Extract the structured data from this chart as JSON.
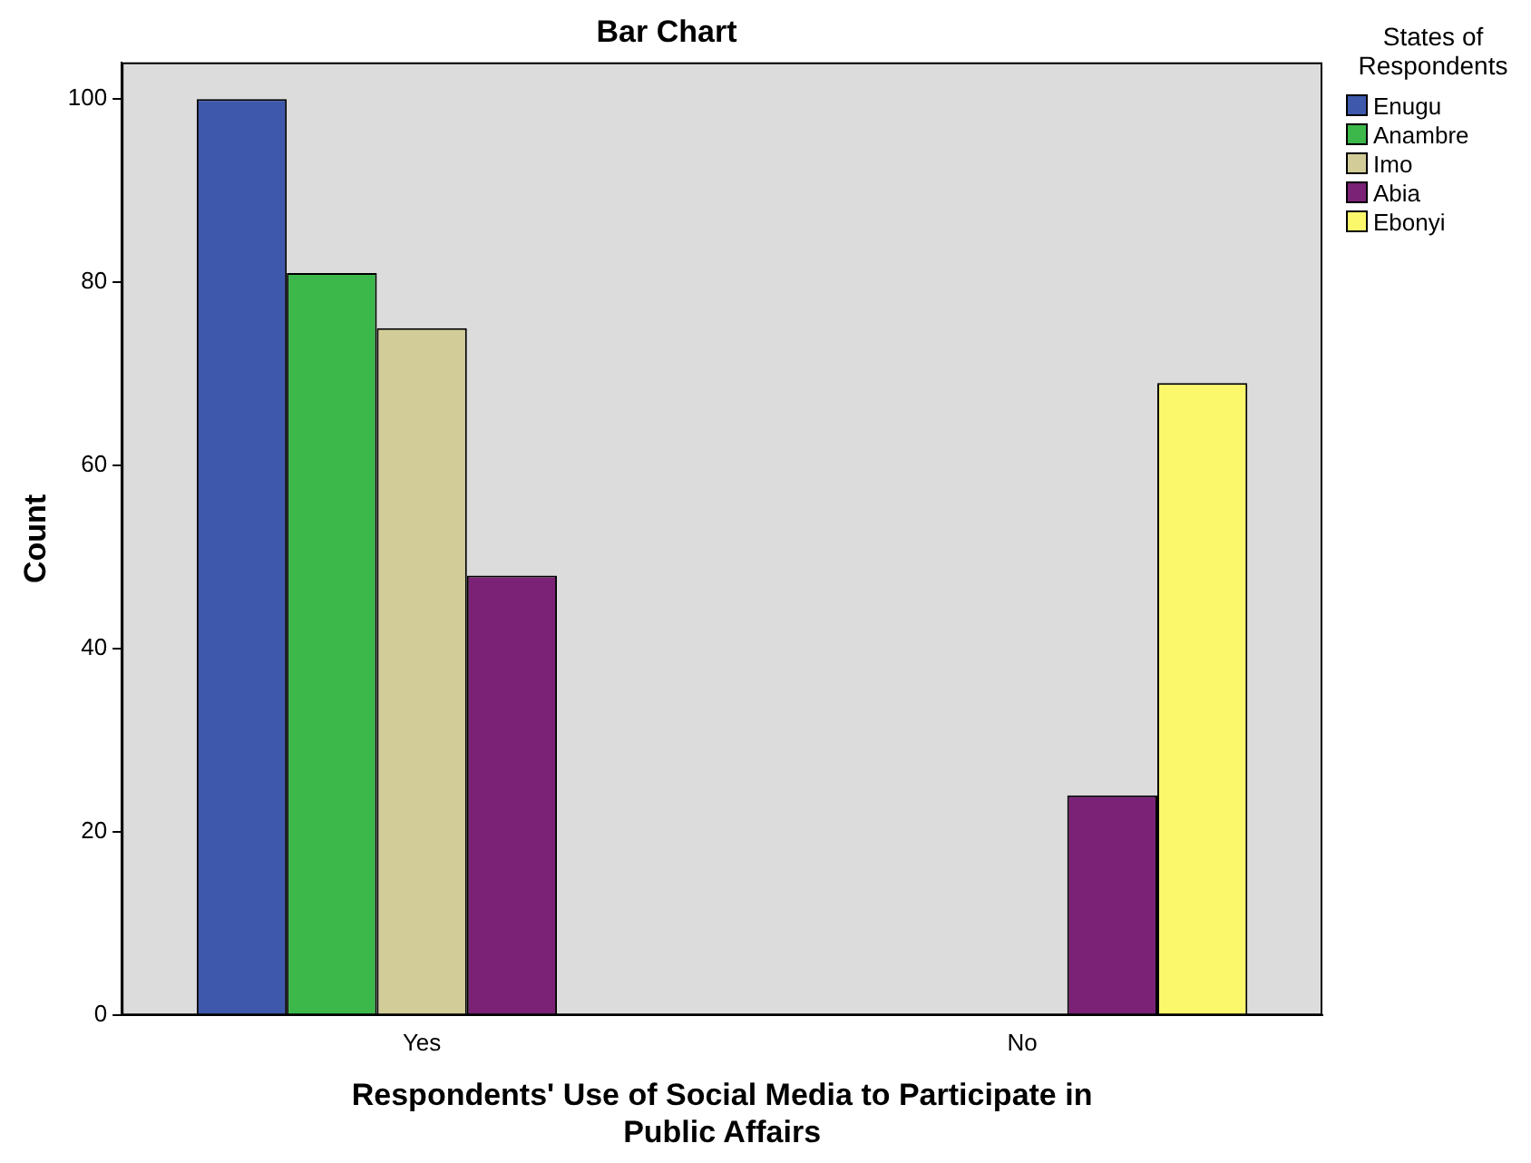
{
  "chart_data": {
    "type": "bar",
    "title": "Bar Chart",
    "xlabel": "Respondents' Use of Social Media to Participate in Public Affairs",
    "ylabel": "Count",
    "legend_title": "States of Respondents",
    "legend": "right",
    "grid": false,
    "categories": [
      "Yes",
      "No"
    ],
    "series": [
      {
        "name": "Enugu",
        "color": "#3e58ac",
        "values": [
          100,
          null
        ]
      },
      {
        "name": "Anambre",
        "color": "#3cb84a",
        "values": [
          81,
          null
        ]
      },
      {
        "name": "Imo",
        "color": "#d2cc98",
        "values": [
          75,
          null
        ]
      },
      {
        "name": "Abia",
        "color": "#7b2277",
        "values": [
          48,
          24
        ]
      },
      {
        "name": "Ebonyi",
        "color": "#fbf86c",
        "values": [
          null,
          69
        ]
      }
    ],
    "ylim": [
      0,
      104
    ],
    "yticks": [
      0,
      20,
      40,
      60,
      80,
      100
    ]
  }
}
